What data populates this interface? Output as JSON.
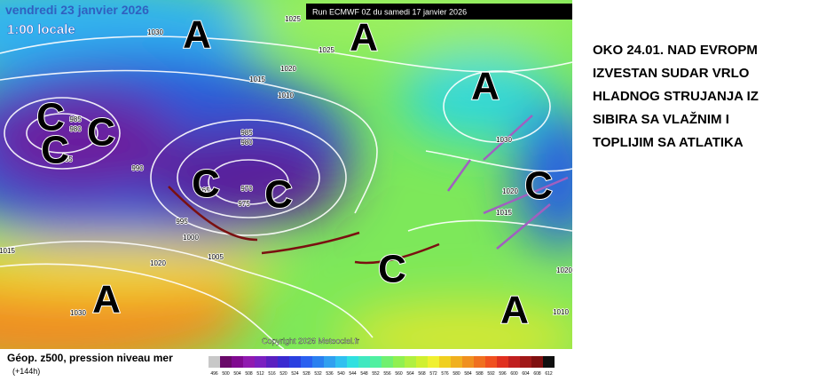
{
  "header": {
    "date": "vendredi 23 janvier 2026",
    "time": "1:00 locale",
    "run": "Run ECMWF 0Z du samedi 17 janvier 2026"
  },
  "map": {
    "pressure_labels": [
      1030,
      1025,
      1025,
      1020,
      1015,
      1010,
      985,
      980,
      990,
      985,
      980,
      985,
      965,
      970,
      975,
      995,
      1000,
      1005,
      1020,
      1030,
      1015,
      1030,
      1020,
      1015,
      1020,
      1010
    ],
    "centers": [
      "A",
      "A",
      "A",
      "C",
      "C",
      "C",
      "C",
      "C",
      "C",
      "C",
      "A",
      "A"
    ],
    "copyright": "Copyright 2026 Meteociel.fr"
  },
  "legend": {
    "title": "Géop. z500, pression niveau mer",
    "lead": "(+144h)",
    "scale": [
      496,
      500,
      504,
      508,
      512,
      516,
      520,
      524,
      528,
      532,
      536,
      540,
      544,
      548,
      552,
      556,
      560,
      564,
      568,
      572,
      576,
      580,
      584,
      588,
      592,
      596,
      600,
      604,
      608,
      612
    ]
  },
  "annotation": {
    "lines": [
      "OKO 24.01. NAD EVROPM",
      "IZVESTAN SUDAR VRLO",
      "HLADNOG STRUJANJA IZ",
      "SIBIRA SA VLAŽNIM I",
      "TOPLIJIM SA ATLATIKA"
    ]
  }
}
